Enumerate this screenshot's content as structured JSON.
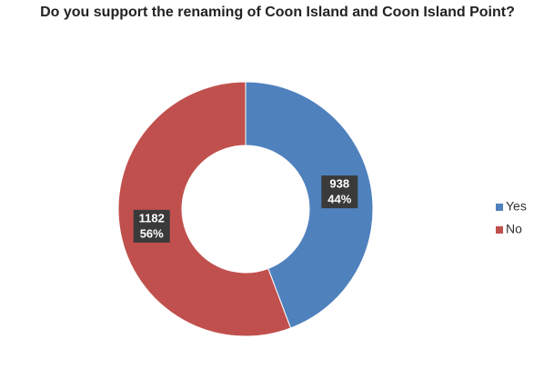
{
  "chart_data": {
    "type": "donut",
    "title": "Do you support the renaming of Coon Island and Coon Island Point?",
    "categories": [
      "Yes",
      "No"
    ],
    "values": [
      938,
      1182
    ],
    "percent_labels": [
      "44%",
      "56%"
    ],
    "colors": [
      "#4f81bd",
      "#c0504d"
    ],
    "legend": "right"
  }
}
